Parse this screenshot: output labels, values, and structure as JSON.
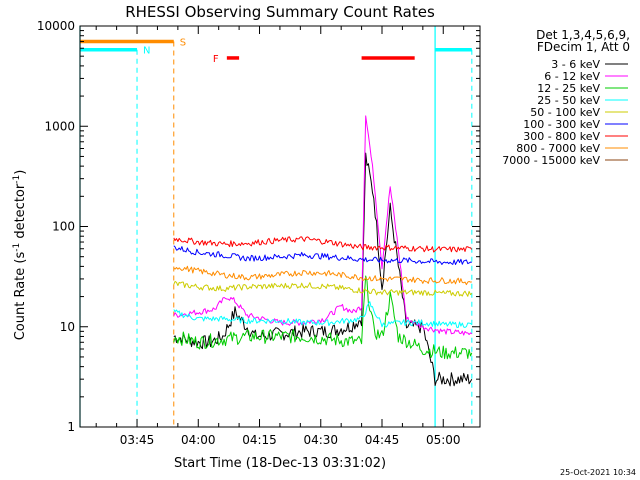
{
  "chart_data": {
    "type": "line",
    "title": "RHESSI Observing Summary Count Rates",
    "xlabel": "Start Time (18-Dec-13 03:31:02)",
    "ylabel": "Count Rate (s^-1 detector^-1)",
    "ylabel_parts": [
      "Count Rate (s",
      "-1",
      " detector",
      "-1",
      ")"
    ],
    "yscale": "log",
    "ylim": [
      1,
      10000
    ],
    "xlim": [
      "03:31:02",
      "05:09:00"
    ],
    "x_ticks": [
      "03:45",
      "04:00",
      "04:15",
      "04:30",
      "04:45",
      "05:00"
    ],
    "y_ticks": [
      "1",
      "10",
      "100",
      "1000",
      "10000"
    ],
    "timestamp": "25-Oct-2021 10:34",
    "legend_header": [
      "Det 1,3,4,5,6,9,",
      "FDecim 1, Att 0"
    ],
    "legend_position": "top-right",
    "series": [
      {
        "name": "3 - 6 keV",
        "color": "#000000",
        "points": [
          [
            "03:54",
            8
          ],
          [
            "03:57",
            7.5
          ],
          [
            "04:00",
            7
          ],
          [
            "04:03",
            7
          ],
          [
            "04:06",
            8
          ],
          [
            "04:09",
            14
          ],
          [
            "04:11",
            11
          ],
          [
            "04:14",
            8
          ],
          [
            "04:20",
            8.5
          ],
          [
            "04:26",
            9
          ],
          [
            "04:32",
            9
          ],
          [
            "04:37",
            10
          ],
          [
            "04:40",
            12
          ],
          [
            "04:41",
            500
          ],
          [
            "04:43",
            200
          ],
          [
            "04:45",
            25
          ],
          [
            "04:47",
            150
          ],
          [
            "04:49",
            40
          ],
          [
            "04:51",
            10
          ],
          [
            "04:55",
            10
          ],
          [
            "04:58",
            3
          ],
          [
            "05:03",
            3
          ],
          [
            "05:07",
            3
          ]
        ]
      },
      {
        "name": "6 - 12 keV",
        "color": "#ff00ff",
        "points": [
          [
            "03:54",
            13
          ],
          [
            "04:00",
            14
          ],
          [
            "04:04",
            15
          ],
          [
            "04:07",
            20
          ],
          [
            "04:09",
            18
          ],
          [
            "04:12",
            13
          ],
          [
            "04:20",
            11
          ],
          [
            "04:26",
            11
          ],
          [
            "04:31",
            12
          ],
          [
            "04:35",
            16
          ],
          [
            "04:38",
            14
          ],
          [
            "04:40",
            16
          ],
          [
            "04:41",
            1350
          ],
          [
            "04:43",
            300
          ],
          [
            "04:45",
            40
          ],
          [
            "04:47",
            250
          ],
          [
            "04:49",
            60
          ],
          [
            "04:51",
            12
          ],
          [
            "04:55",
            10
          ],
          [
            "05:00",
            9
          ],
          [
            "05:07",
            8.5
          ]
        ]
      },
      {
        "name": "12 - 25 keV",
        "color": "#00cc00",
        "points": [
          [
            "03:54",
            8
          ],
          [
            "04:00",
            7
          ],
          [
            "04:06",
            7.5
          ],
          [
            "04:12",
            8
          ],
          [
            "04:20",
            8
          ],
          [
            "04:26",
            8
          ],
          [
            "04:32",
            7.5
          ],
          [
            "04:40",
            7
          ],
          [
            "04:41",
            30
          ],
          [
            "04:43",
            9
          ],
          [
            "04:45",
            8
          ],
          [
            "04:47",
            20
          ],
          [
            "04:49",
            8
          ],
          [
            "04:55",
            6
          ],
          [
            "05:00",
            5.5
          ],
          [
            "05:07",
            5.5
          ]
        ]
      },
      {
        "name": "25 - 50 keV",
        "color": "#00ffff",
        "points": [
          [
            "03:54",
            14
          ],
          [
            "04:00",
            12
          ],
          [
            "04:06",
            12
          ],
          [
            "04:12",
            11.5
          ],
          [
            "04:20",
            11.5
          ],
          [
            "04:26",
            11
          ],
          [
            "04:32",
            11
          ],
          [
            "04:40",
            12
          ],
          [
            "04:42",
            17
          ],
          [
            "04:45",
            10.5
          ],
          [
            "04:50",
            11
          ],
          [
            "04:55",
            11
          ],
          [
            "05:00",
            10.5
          ],
          [
            "05:07",
            10.5
          ]
        ]
      },
      {
        "name": "50 - 100 keV",
        "color": "#cccc00",
        "points": [
          [
            "03:54",
            27
          ],
          [
            "04:00",
            25
          ],
          [
            "04:06",
            24
          ],
          [
            "04:12",
            25
          ],
          [
            "04:20",
            25.5
          ],
          [
            "04:26",
            26
          ],
          [
            "04:32",
            25
          ],
          [
            "04:40",
            23
          ],
          [
            "04:45",
            22
          ],
          [
            "04:50",
            22
          ],
          [
            "04:55",
            22
          ],
          [
            "05:00",
            21.5
          ],
          [
            "05:07",
            21.5
          ]
        ]
      },
      {
        "name": "100 - 300 keV",
        "color": "#0000ff",
        "points": [
          [
            "03:54",
            62
          ],
          [
            "04:00",
            55
          ],
          [
            "04:06",
            52
          ],
          [
            "04:12",
            48
          ],
          [
            "04:20",
            50
          ],
          [
            "04:26",
            52
          ],
          [
            "04:32",
            50
          ],
          [
            "04:40",
            47
          ],
          [
            "04:45",
            46
          ],
          [
            "04:50",
            46
          ],
          [
            "04:55",
            45
          ],
          [
            "05:00",
            44
          ],
          [
            "05:07",
            44
          ]
        ]
      },
      {
        "name": "300 - 800 keV",
        "color": "#ff0000",
        "points": [
          [
            "03:54",
            76
          ],
          [
            "04:00",
            70
          ],
          [
            "04:06",
            67
          ],
          [
            "04:12",
            68
          ],
          [
            "04:20",
            73
          ],
          [
            "04:26",
            75
          ],
          [
            "04:32",
            70
          ],
          [
            "04:40",
            62
          ],
          [
            "04:45",
            62
          ],
          [
            "04:50",
            61
          ],
          [
            "04:55",
            60
          ],
          [
            "05:00",
            59
          ],
          [
            "05:07",
            59
          ]
        ]
      },
      {
        "name": "800 - 7000 keV",
        "color": "#ff8c00",
        "points": [
          [
            "03:54",
            40
          ],
          [
            "04:00",
            36
          ],
          [
            "04:06",
            33
          ],
          [
            "04:12",
            31
          ],
          [
            "04:20",
            33
          ],
          [
            "04:26",
            35
          ],
          [
            "04:32",
            34
          ],
          [
            "04:40",
            31
          ],
          [
            "04:45",
            30
          ],
          [
            "04:50",
            30
          ],
          [
            "04:55",
            29
          ],
          [
            "05:00",
            29
          ],
          [
            "05:07",
            28
          ]
        ]
      },
      {
        "name": "7000 - 15000 keV",
        "color": "#8b4513",
        "points": []
      }
    ],
    "flags": [
      {
        "label": "S",
        "color": "#ff8c00",
        "x_start": "03:31:02",
        "x_end": "03:54",
        "level": 7000,
        "dashed_at": "03:54"
      },
      {
        "label": "N",
        "color": "#00ffff",
        "x_start": "03:31:02",
        "x_end": "03:45",
        "level": 5800,
        "dashed_at": "03:45"
      },
      {
        "label": "",
        "color": "#00ffff",
        "x_start": "04:58",
        "x_end": "05:07",
        "level": 5800,
        "dashed_at": "05:07"
      },
      {
        "label": "F",
        "color": "#ff0000",
        "x_start": "04:07",
        "x_end": "04:10",
        "level": 4800
      },
      {
        "label": "",
        "color": "#ff0000",
        "x_start": "04:40",
        "x_end": "04:53",
        "level": 4800
      }
    ],
    "vlines_solid": [
      {
        "x": "03:31:02",
        "color": "#00ffff"
      },
      {
        "x": "04:58",
        "color": "#00ffff"
      }
    ]
  }
}
